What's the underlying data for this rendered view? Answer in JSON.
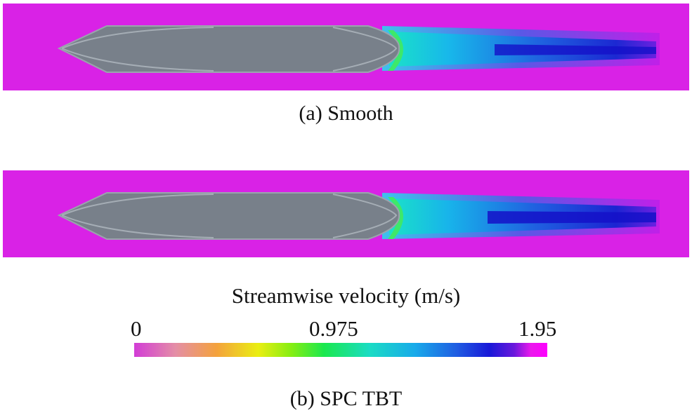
{
  "figure": {
    "captions": {
      "a": "(a) Smooth",
      "b": "(b) SPC TBT"
    },
    "colorbar": {
      "title": "Streamwise velocity (m/s)",
      "min_label": "0",
      "mid_label": "0.975",
      "max_label": "1.95",
      "range": [
        0,
        1.95
      ],
      "colormap": [
        "#d23cd6",
        "#f4a23c",
        "#eaee12",
        "#1ae84e",
        "#1adcc4",
        "#18aaea",
        "#1818d8",
        "#ff00ff"
      ]
    },
    "colors": {
      "free_stream": "#e21ee6",
      "hull": "#78808a"
    }
  }
}
